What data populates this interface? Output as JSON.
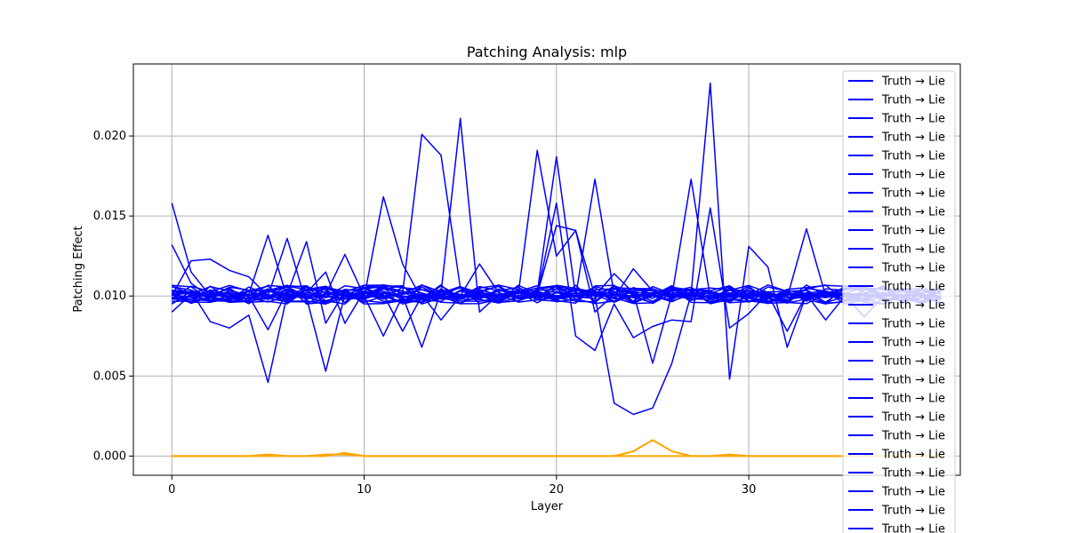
{
  "chart_data": {
    "type": "line",
    "title": "Patching Analysis: mlp",
    "xlabel": "Layer",
    "ylabel": "Patching Effect",
    "xlim": [
      -2,
      41
    ],
    "ylim": [
      -0.0012,
      0.0245
    ],
    "xticks": [
      0,
      10,
      20,
      30
    ],
    "yticks": [
      0.0,
      0.005,
      0.01,
      0.015,
      0.02
    ],
    "ytick_labels": [
      "0.000",
      "0.005",
      "0.010",
      "0.015",
      "0.020"
    ],
    "grid": true,
    "legend_placement": "upper-right",
    "legend_entries": [
      "Truth → Lie",
      "Truth → Lie",
      "Truth → Lie",
      "Truth → Lie",
      "Truth → Lie",
      "Truth → Lie",
      "Truth → Lie",
      "Truth → Lie",
      "Truth → Lie",
      "Truth → Lie",
      "Truth → Lie",
      "Truth → Lie",
      "Truth → Lie",
      "Truth → Lie",
      "Truth → Lie",
      "Truth → Lie",
      "Truth → Lie",
      "Truth → Lie",
      "Truth → Lie",
      "Truth → Lie",
      "Truth → Lie",
      "Truth → Lie",
      "Truth → Lie",
      "Truth → Lie",
      "Truth → Lie"
    ],
    "colors": {
      "series": "#0000ff",
      "baseline": "#ffa500",
      "grid": "#b0b0b0"
    },
    "x": [
      0,
      1,
      2,
      3,
      4,
      5,
      6,
      7,
      8,
      9,
      10,
      11,
      12,
      13,
      14,
      15,
      16,
      17,
      18,
      19,
      20,
      21,
      22,
      23,
      24,
      25,
      26,
      27,
      28,
      29,
      30,
      31,
      32,
      33,
      34,
      35,
      36,
      37,
      38,
      39,
      40
    ],
    "series": [
      {
        "values": [
          0.0158,
          0.0115,
          0.01,
          0.0102,
          0.0098,
          0.0104,
          0.0101,
          0.0099,
          0.0103,
          0.01,
          0.0102,
          0.0098,
          0.0101,
          0.0104,
          0.01,
          0.0099,
          0.0102,
          0.0101,
          0.01,
          0.0103,
          0.0099,
          0.0102,
          0.01,
          0.0101,
          0.0099,
          0.0102,
          0.0101,
          0.01,
          0.0103,
          0.0099,
          0.0101,
          0.01,
          0.0102,
          0.0099,
          0.0101,
          0.01,
          0.01,
          0.0101,
          0.01,
          0.01,
          0.01
        ]
      },
      {
        "values": [
          0.0132,
          0.0108,
          0.0099,
          0.0103,
          0.0101,
          0.0138,
          0.0099,
          0.0102,
          0.01,
          0.0098,
          0.0103,
          0.01,
          0.0102,
          0.0201,
          0.0188,
          0.0105,
          0.0099,
          0.0101,
          0.01,
          0.0103,
          0.0098,
          0.0102,
          0.0101,
          0.0099,
          0.0103,
          0.01,
          0.0101,
          0.0102,
          0.0099,
          0.01,
          0.0101,
          0.01,
          0.0102,
          0.01,
          0.0099,
          0.0101,
          0.01,
          0.01,
          0.0101,
          0.01,
          0.01
        ]
      },
      {
        "values": [
          0.01,
          0.0122,
          0.0123,
          0.0116,
          0.0112,
          0.01,
          0.0136,
          0.0095,
          0.0102,
          0.0101,
          0.0099,
          0.0162,
          0.012,
          0.0098,
          0.0102,
          0.0211,
          0.009,
          0.0101,
          0.01,
          0.0191,
          0.0125,
          0.0141,
          0.009,
          0.0101,
          0.01,
          0.0102,
          0.01,
          0.0173,
          0.0099,
          0.0101,
          0.01,
          0.0102,
          0.0099,
          0.0142,
          0.01,
          0.0101,
          0.01,
          0.01,
          0.01,
          0.01,
          0.01
        ]
      },
      {
        "values": [
          0.0095,
          0.0103,
          0.0084,
          0.008,
          0.0088,
          0.0046,
          0.0101,
          0.0134,
          0.0083,
          0.0103,
          0.01,
          0.0099,
          0.0102,
          0.0101,
          0.0098,
          0.0103,
          0.01,
          0.0101,
          0.0099,
          0.0102,
          0.0187,
          0.01,
          0.0173,
          0.0101,
          0.0099,
          0.0102,
          0.01,
          0.0101,
          0.0233,
          0.0048,
          0.0131,
          0.0118,
          0.0068,
          0.0101,
          0.01,
          0.0101,
          0.01,
          0.01,
          0.01,
          0.01,
          0.01
        ]
      },
      {
        "values": [
          0.009,
          0.0101,
          0.0099,
          0.0102,
          0.01,
          0.0079,
          0.0103,
          0.0099,
          0.0053,
          0.0101,
          0.0098,
          0.0102,
          0.01,
          0.0099,
          0.0103,
          0.01,
          0.0101,
          0.0099,
          0.0102,
          0.0101,
          0.0158,
          0.0075,
          0.0066,
          0.0095,
          0.0074,
          0.0081,
          0.0085,
          0.0084,
          0.0155,
          0.008,
          0.0089,
          0.0102,
          0.0099,
          0.0101,
          0.0085,
          0.01,
          0.0101,
          0.01,
          0.01,
          0.01,
          0.01
        ]
      },
      {
        "values": [
          0.0101,
          0.0099,
          0.0102,
          0.01,
          0.0098,
          0.0103,
          0.01,
          0.0101,
          0.0099,
          0.0102,
          0.01,
          0.0075,
          0.01,
          0.0068,
          0.0103,
          0.0101,
          0.0099,
          0.01,
          0.0102,
          0.0101,
          0.0099,
          0.0102,
          0.01,
          0.0033,
          0.0026,
          0.003,
          0.0058,
          0.0101,
          0.0099,
          0.01,
          0.0102,
          0.01,
          0.0101,
          0.0099,
          0.01,
          0.0102,
          0.01,
          0.01,
          0.01,
          0.01,
          0.01
        ]
      },
      {
        "values": [
          0.0098,
          0.01,
          0.0103,
          0.0099,
          0.0101,
          0.01,
          0.0102,
          0.0098,
          0.0101,
          0.0126,
          0.01,
          0.0103,
          0.0099,
          0.0101,
          0.0085,
          0.01,
          0.012,
          0.0102,
          0.0099,
          0.0101,
          0.0144,
          0.0141,
          0.01,
          0.0114,
          0.0102,
          0.0058,
          0.0101,
          0.0099,
          0.0102,
          0.01,
          0.0099,
          0.0101,
          0.0078,
          0.0101,
          0.0102,
          0.01,
          0.0087,
          0.01,
          0.01,
          0.01,
          0.01
        ]
      },
      {
        "values": [
          0.0103,
          0.0102,
          0.0101,
          0.0099,
          0.0103,
          0.01,
          0.0098,
          0.0102,
          0.0115,
          0.0083,
          0.0103,
          0.0101,
          0.0078,
          0.01,
          0.0102,
          0.0099,
          0.0101,
          0.01,
          0.0103,
          0.0098,
          0.0102,
          0.01,
          0.0101,
          0.0099,
          0.0117,
          0.0103,
          0.01,
          0.0101,
          0.0099,
          0.0102,
          0.01,
          0.0101,
          0.0099,
          0.0102,
          0.01,
          0.0101,
          0.01,
          0.01,
          0.01,
          0.01,
          0.01
        ]
      }
    ],
    "band": {
      "center": 0.0101,
      "spread": 0.0006,
      "count": 17
    },
    "baseline_series": [
      {
        "values": [
          0.0,
          0.0,
          0.0,
          0.0,
          0.0,
          0.0,
          0.0,
          0.0,
          0.0001,
          0.0001,
          0.0,
          0.0,
          0.0,
          0.0,
          0.0,
          0.0,
          0.0,
          0.0,
          0.0,
          0.0,
          0.0,
          0.0,
          0.0,
          0.0,
          0.0003,
          0.001,
          0.0003,
          0.0,
          0.0,
          0.0,
          0.0,
          0.0,
          0.0,
          0.0,
          0.0,
          0.0,
          0.0,
          0.0,
          0.0,
          0.0,
          0.0
        ]
      },
      {
        "values": [
          0.0,
          0.0,
          0.0,
          0.0,
          0.0,
          0.0001,
          0.0,
          0.0,
          0.0,
          0.0002,
          0.0,
          0.0,
          0.0,
          0.0,
          0.0,
          0.0,
          0.0,
          0.0,
          0.0,
          0.0,
          0.0,
          0.0,
          0.0,
          0.0,
          0.0,
          0.0,
          0.0,
          0.0,
          0.0,
          0.0001,
          0.0,
          0.0,
          0.0,
          0.0,
          0.0,
          0.0,
          0.0,
          0.0,
          0.0,
          0.0,
          0.0
        ]
      }
    ]
  }
}
